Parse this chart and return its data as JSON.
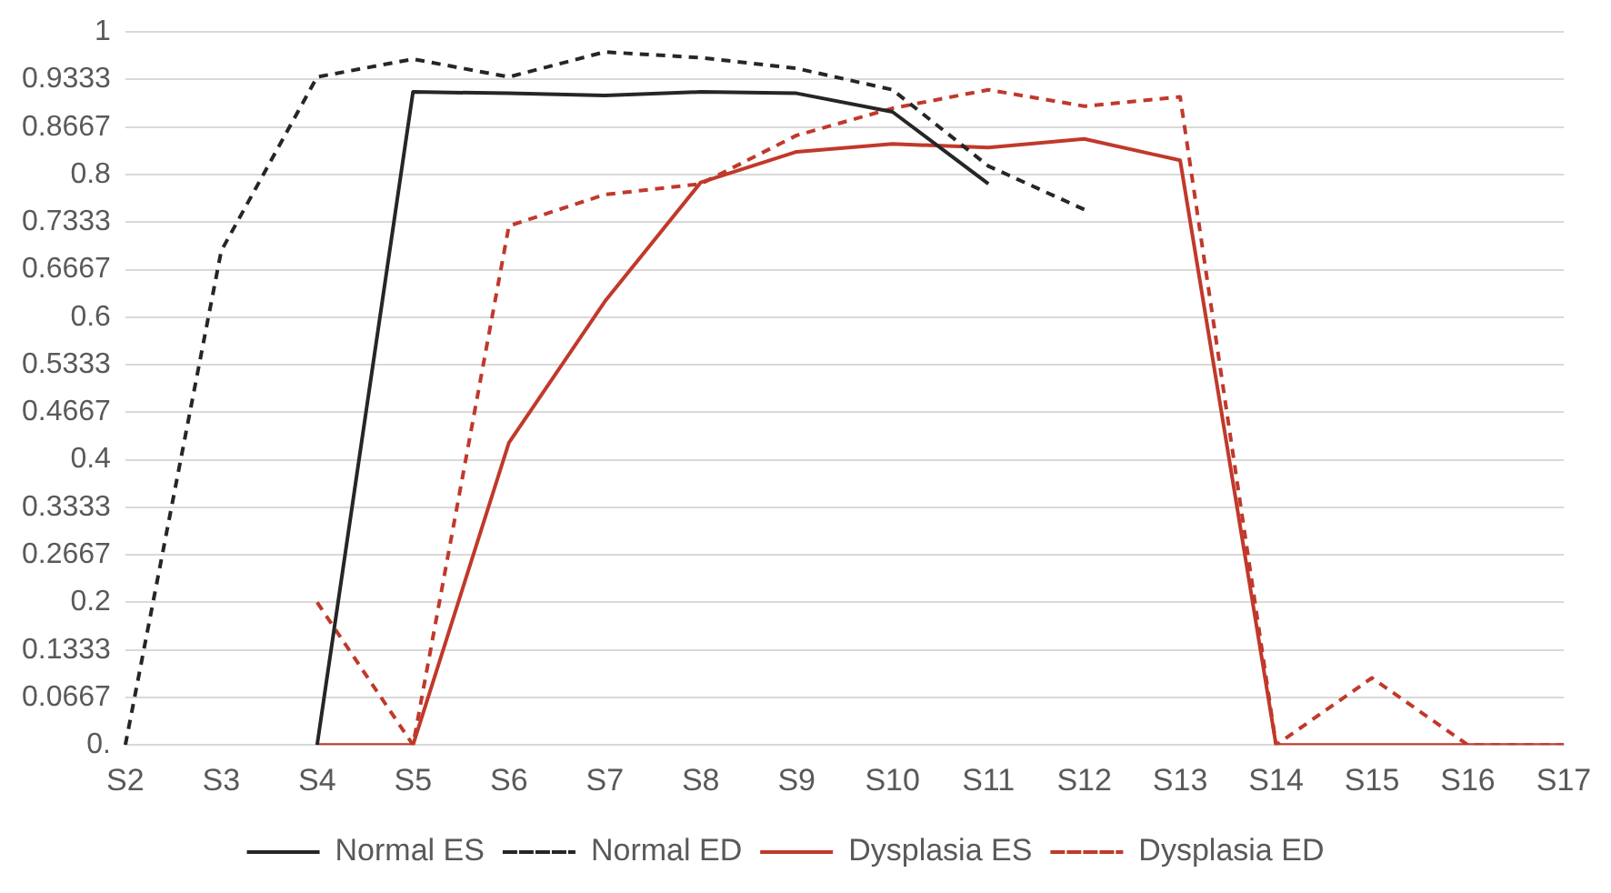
{
  "chart_data": {
    "type": "line",
    "categories": [
      "S2",
      "S3",
      "S4",
      "S5",
      "S6",
      "S7",
      "S8",
      "S9",
      "S10",
      "S11",
      "S12",
      "S13",
      "S14",
      "S15",
      "S16",
      "S17"
    ],
    "series": [
      {
        "name": "Normal ES",
        "color": "#262626",
        "line_style": "solid",
        "values": [
          null,
          null,
          0,
          0.916,
          0.914,
          0.911,
          0.916,
          0.914,
          0.888,
          0.787,
          null,
          null,
          null,
          null,
          null,
          null
        ]
      },
      {
        "name": "Normal ED",
        "color": "#262626",
        "line_style": "dashed",
        "values": [
          0,
          0.693,
          0.937,
          0.962,
          0.937,
          0.972,
          0.964,
          0.949,
          0.919,
          0.812,
          0.751,
          null,
          null,
          null,
          null,
          null
        ]
      },
      {
        "name": "Dysplasia ES",
        "color": "#c0392b",
        "line_style": "solid",
        "values": [
          null,
          null,
          0,
          0,
          0.424,
          0.622,
          0.789,
          0.832,
          0.843,
          0.838,
          0.85,
          0.82,
          0,
          0,
          0,
          0
        ]
      },
      {
        "name": "Dysplasia ED",
        "color": "#c0392b",
        "line_style": "dashed",
        "values": [
          null,
          null,
          0.2,
          0,
          0.728,
          0.772,
          0.787,
          0.855,
          0.893,
          0.919,
          0.896,
          0.909,
          0,
          0.094,
          0,
          0
        ]
      }
    ],
    "ylim": [
      0,
      1
    ],
    "yticks": [
      {
        "value": 0,
        "label": "0."
      },
      0.0667,
      0.1333,
      0.2,
      0.2667,
      0.3333,
      0.4,
      0.4667,
      0.5333,
      0.6,
      0.6667,
      0.7333,
      0.8,
      0.8667,
      0.9333,
      1
    ],
    "grid": "y",
    "legend": "bottom",
    "marker": "none"
  }
}
